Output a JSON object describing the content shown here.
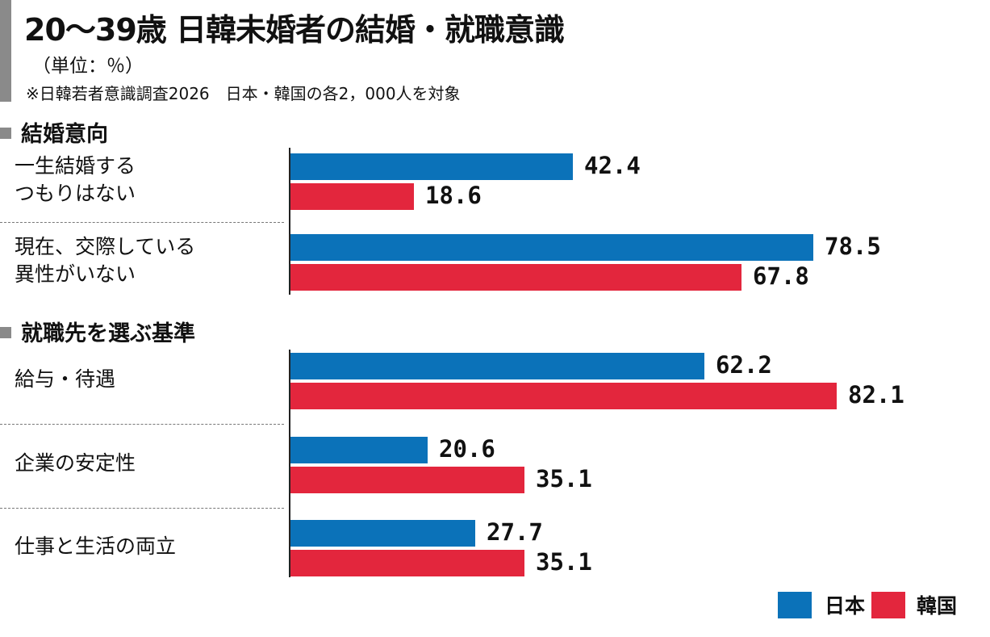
{
  "header": {
    "title": "20〜39歳 日韓未婚者の結婚・就職意識",
    "unit": "（単位：％）",
    "source": "※日韓若者意識調査2026　日本・韓国の各2，000人を対象"
  },
  "colors": {
    "japan": "#0b72b9",
    "korea": "#e3263d"
  },
  "legend": {
    "japan": "日本",
    "korea": "韓国"
  },
  "chart_data": [
    {
      "type": "bar",
      "orientation": "horizontal",
      "title": "結婚意向",
      "categories": [
        "一生結婚する\nつもりはない",
        "現在、交際している\n異性がいない"
      ],
      "series": [
        {
          "name": "日本",
          "values": [
            42.4,
            78.5
          ],
          "labels": [
            "42.4",
            "78.5"
          ]
        },
        {
          "name": "韓国",
          "values": [
            18.6,
            67.8
          ],
          "labels": [
            "18.6",
            "67.8"
          ]
        }
      ],
      "xlim": [
        0,
        100
      ],
      "grid": false
    },
    {
      "type": "bar",
      "orientation": "horizontal",
      "title": "就職先を選ぶ基準",
      "categories": [
        "給与・待遇",
        "企業の安定性",
        "仕事と生活の両立"
      ],
      "series": [
        {
          "name": "日本",
          "values": [
            62.2,
            20.6,
            27.7
          ],
          "labels": [
            "62.2",
            "20.6",
            "27.7"
          ]
        },
        {
          "name": "韓国",
          "values": [
            82.1,
            35.1,
            35.1
          ],
          "labels": [
            "82.1",
            "35.1",
            "35.1"
          ]
        }
      ],
      "xlim": [
        0,
        100
      ],
      "grid": false
    }
  ]
}
